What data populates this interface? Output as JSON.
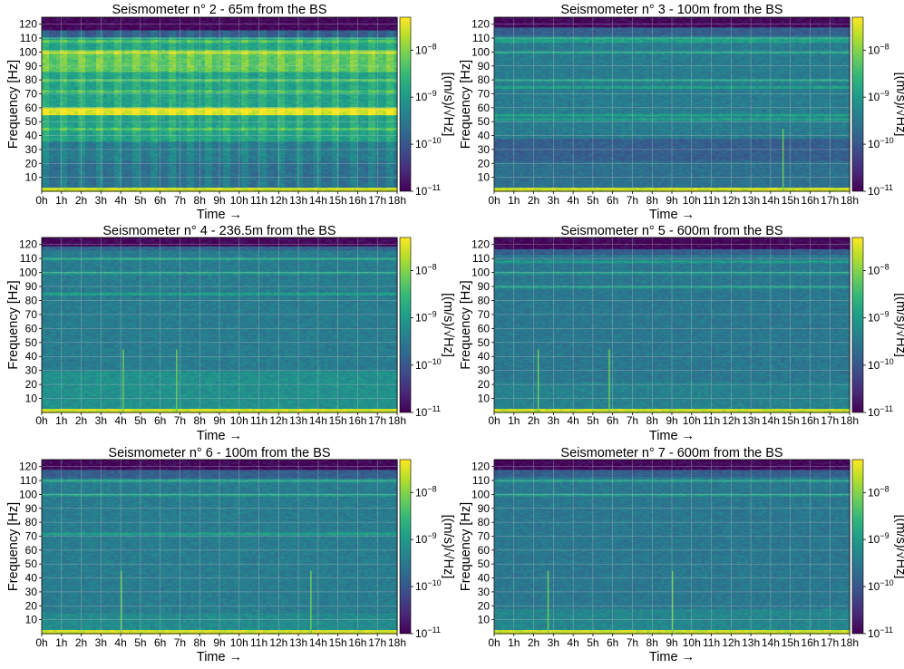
{
  "colors": {
    "viridis": [
      "#440154",
      "#482878",
      "#3e4a89",
      "#31688e",
      "#26828e",
      "#1f9e89",
      "#35b779",
      "#6ece58",
      "#b5de2b",
      "#fde725"
    ],
    "grid": "#c8c8c8"
  },
  "chart_data": [
    {
      "type": "heatmap",
      "title": "Seismometer n° 2 - 65m from the BS",
      "xlabel": "Time →",
      "ylabel": "Frequency [Hz]",
      "colorbar_label": "[(m/s)/√Hz]",
      "x_ticks": [
        "0h",
        "1h",
        "2h",
        "3h",
        "4h",
        "5h",
        "6h",
        "7h",
        "8h",
        "9h",
        "10h",
        "11h",
        "12h",
        "13h",
        "14h",
        "15h",
        "16h",
        "17h",
        "18h"
      ],
      "y_ticks": [
        10,
        20,
        30,
        40,
        50,
        60,
        70,
        80,
        90,
        100,
        110,
        120
      ],
      "xlim": [
        0,
        18
      ],
      "ylim": [
        0,
        125
      ],
      "color_scale": "log",
      "colorbar_ticks": [
        "10^-11",
        "10^-10",
        "10^-9",
        "10^-8"
      ],
      "colorbar_range": [
        1e-11,
        5e-08
      ],
      "grid": true,
      "background_level": 0.58,
      "bands": [
        {
          "f": [
            0,
            3
          ],
          "level": 0.92
        },
        {
          "f": [
            116,
            125
          ],
          "level": 0.02
        },
        {
          "f": [
            111,
            116
          ],
          "level": 0.3
        },
        {
          "f": [
            55,
            60
          ],
          "level": 0.95
        },
        {
          "f": [
            86,
            102
          ],
          "level": 0.75
        },
        {
          "f": [
            22,
            36
          ],
          "level": 0.42
        },
        {
          "f": [
            3,
            22
          ],
          "level": 0.38
        }
      ],
      "lines": [
        60,
        100,
        108,
        72,
        80,
        45
      ],
      "spikes": [],
      "periodic": true
    },
    {
      "type": "heatmap",
      "title": "Seismometer n° 3 - 100m from the BS",
      "xlabel": "Time →",
      "ylabel": "Frequency [Hz]",
      "colorbar_label": "[(m/s)/√Hz]",
      "x_ticks": [
        "0h",
        "1h",
        "2h",
        "3h",
        "4h",
        "5h",
        "6h",
        "7h",
        "8h",
        "9h",
        "10h",
        "11h",
        "12h",
        "13h",
        "14h",
        "15h",
        "16h",
        "17h",
        "18h"
      ],
      "y_ticks": [
        10,
        20,
        30,
        40,
        50,
        60,
        70,
        80,
        90,
        100,
        110,
        120
      ],
      "xlim": [
        0,
        18
      ],
      "ylim": [
        0,
        125
      ],
      "color_scale": "log",
      "colorbar_ticks": [
        "10^-11",
        "10^-10",
        "10^-9",
        "10^-8"
      ],
      "colorbar_range": [
        1e-11,
        5e-08
      ],
      "grid": true,
      "background_level": 0.42,
      "bands": [
        {
          "f": [
            0,
            3
          ],
          "level": 0.92
        },
        {
          "f": [
            118,
            125
          ],
          "level": 0.02
        },
        {
          "f": [
            112,
            118
          ],
          "level": 0.3
        },
        {
          "f": [
            22,
            38
          ],
          "level": 0.3
        },
        {
          "f": [
            3,
            22
          ],
          "level": 0.37
        }
      ],
      "lines": [
        110,
        108,
        100,
        80,
        75,
        55,
        52
      ],
      "spikes": [
        14.6
      ],
      "periodic": false
    },
    {
      "type": "heatmap",
      "title": "Seismometer n° 4 - 236.5m from the BS",
      "xlabel": "Time →",
      "ylabel": "Frequency [Hz]",
      "colorbar_label": "[(m/s)/√Hz]",
      "x_ticks": [
        "0h",
        "1h",
        "2h",
        "3h",
        "4h",
        "5h",
        "6h",
        "7h",
        "8h",
        "9h",
        "10h",
        "11h",
        "12h",
        "13h",
        "14h",
        "15h",
        "16h",
        "17h",
        "18h"
      ],
      "y_ticks": [
        10,
        20,
        30,
        40,
        50,
        60,
        70,
        80,
        90,
        100,
        110,
        120
      ],
      "xlim": [
        0,
        18
      ],
      "ylim": [
        0,
        125
      ],
      "color_scale": "log",
      "colorbar_ticks": [
        "10^-11",
        "10^-10",
        "10^-9",
        "10^-8"
      ],
      "colorbar_range": [
        1e-11,
        5e-08
      ],
      "grid": true,
      "background_level": 0.42,
      "bands": [
        {
          "f": [
            0,
            3
          ],
          "level": 0.93
        },
        {
          "f": [
            119,
            125
          ],
          "level": 0.02
        },
        {
          "f": [
            116,
            119
          ],
          "level": 0.32
        },
        {
          "f": [
            3,
            30
          ],
          "level": 0.5
        }
      ],
      "lines": [
        110,
        100,
        85
      ],
      "spikes": [
        4.1,
        6.8
      ],
      "periodic": false
    },
    {
      "type": "heatmap",
      "title": "Seismometer n° 5 - 600m from the BS",
      "xlabel": "Time →",
      "ylabel": "Frequency [Hz]",
      "colorbar_label": "[(m/s)/√Hz]",
      "x_ticks": [
        "0h",
        "1h",
        "2h",
        "3h",
        "4h",
        "5h",
        "6h",
        "7h",
        "8h",
        "9h",
        "10h",
        "11h",
        "12h",
        "13h",
        "14h",
        "15h",
        "16h",
        "17h",
        "18h"
      ],
      "y_ticks": [
        10,
        20,
        30,
        40,
        50,
        60,
        70,
        80,
        90,
        100,
        110,
        120
      ],
      "xlim": [
        0,
        18
      ],
      "ylim": [
        0,
        125
      ],
      "color_scale": "log",
      "colorbar_ticks": [
        "10^-11",
        "10^-10",
        "10^-9",
        "10^-8"
      ],
      "colorbar_range": [
        1e-11,
        5e-08
      ],
      "grid": true,
      "background_level": 0.4,
      "bands": [
        {
          "f": [
            0,
            3
          ],
          "level": 0.92
        },
        {
          "f": [
            117,
            125
          ],
          "level": 0.02
        },
        {
          "f": [
            113,
            117
          ],
          "level": 0.3
        },
        {
          "f": [
            3,
            22
          ],
          "level": 0.44
        }
      ],
      "lines": [
        108,
        100,
        90
      ],
      "spikes": [
        2.2,
        5.8
      ],
      "periodic": false
    },
    {
      "type": "heatmap",
      "title": "Seismometer n° 6 - 100m from the BS",
      "xlabel": "Time →",
      "ylabel": "Frequency [Hz]",
      "colorbar_label": "[(m/s)/√Hz]",
      "x_ticks": [
        "0h",
        "1h",
        "2h",
        "3h",
        "4h",
        "5h",
        "6h",
        "7h",
        "8h",
        "9h",
        "10h",
        "11h",
        "12h",
        "13h",
        "14h",
        "15h",
        "16h",
        "17h",
        "18h"
      ],
      "y_ticks": [
        10,
        20,
        30,
        40,
        50,
        60,
        70,
        80,
        90,
        100,
        110,
        120
      ],
      "xlim": [
        0,
        18
      ],
      "ylim": [
        0,
        125
      ],
      "color_scale": "log",
      "colorbar_ticks": [
        "10^-11",
        "10^-10",
        "10^-9",
        "10^-8"
      ],
      "colorbar_range": [
        1e-11,
        5e-08
      ],
      "grid": true,
      "background_level": 0.42,
      "bands": [
        {
          "f": [
            0,
            3
          ],
          "level": 0.93
        },
        {
          "f": [
            118,
            125
          ],
          "level": 0.02
        },
        {
          "f": [
            112,
            118
          ],
          "level": 0.3
        },
        {
          "f": [
            3,
            15
          ],
          "level": 0.48
        }
      ],
      "lines": [
        110,
        100,
        72
      ],
      "spikes": [
        4.0,
        13.6
      ],
      "periodic": false
    },
    {
      "type": "heatmap",
      "title": "Seismometer n° 7 - 600m from the BS",
      "xlabel": "Time →",
      "ylabel": "Frequency [Hz]",
      "colorbar_label": "[(m/s)/√Hz]",
      "x_ticks": [
        "0h",
        "1h",
        "2h",
        "3h",
        "4h",
        "5h",
        "6h",
        "7h",
        "8h",
        "9h",
        "10h",
        "11h",
        "12h",
        "13h",
        "14h",
        "15h",
        "16h",
        "17h",
        "18h"
      ],
      "y_ticks": [
        10,
        20,
        30,
        40,
        50,
        60,
        70,
        80,
        90,
        100,
        110,
        120
      ],
      "xlim": [
        0,
        18
      ],
      "ylim": [
        0,
        125
      ],
      "color_scale": "log",
      "colorbar_ticks": [
        "10^-11",
        "10^-10",
        "10^-9",
        "10^-8"
      ],
      "colorbar_range": [
        1e-11,
        5e-08
      ],
      "grid": true,
      "background_level": 0.4,
      "bands": [
        {
          "f": [
            0,
            3
          ],
          "level": 0.92
        },
        {
          "f": [
            118,
            125
          ],
          "level": 0.02
        },
        {
          "f": [
            113,
            118
          ],
          "level": 0.3
        },
        {
          "f": [
            3,
            18
          ],
          "level": 0.46
        }
      ],
      "lines": [
        110,
        100
      ],
      "spikes": [
        2.7,
        9.0
      ],
      "periodic": false
    }
  ]
}
